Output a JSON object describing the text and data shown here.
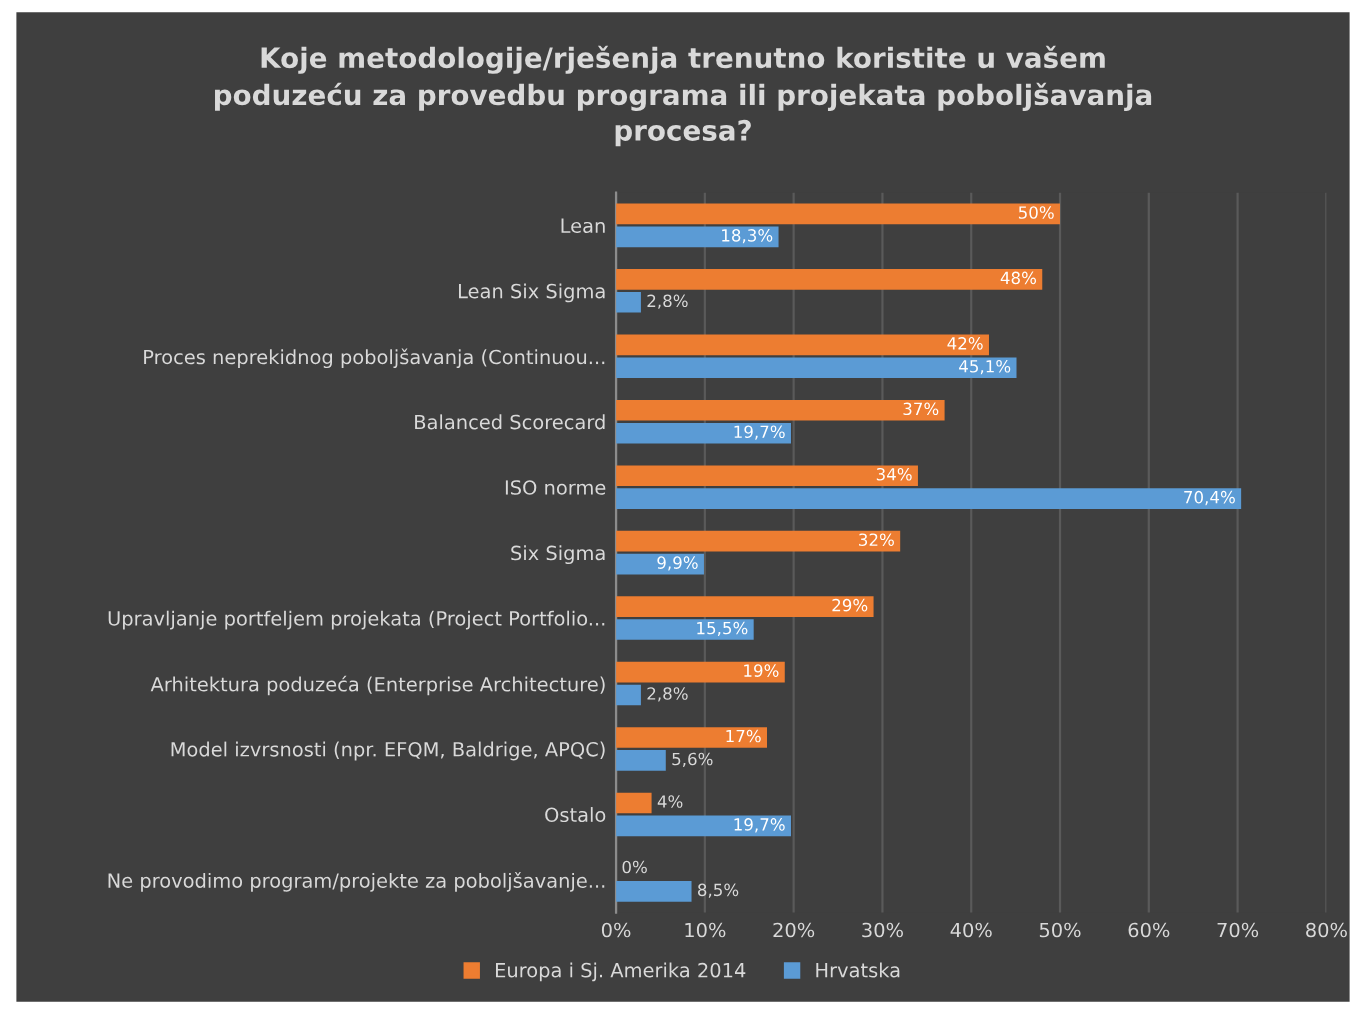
{
  "chart_data": {
    "type": "bar",
    "orientation": "horizontal",
    "title": "Koje metodologije/rješenja trenutno koristite u vašem\npoduzeću za provedbu programa ili projekata poboljšavanja\nprocesa?",
    "categories": [
      "Lean",
      "Lean Six Sigma",
      "Proces neprekidnog poboljšavanja (Continuou...",
      "Balanced Scorecard",
      "ISO norme",
      "Six Sigma",
      "Upravljanje portfeljem projekata (Project Portfolio...",
      "Arhitektura poduzeća (Enterprise Architecture)",
      "Model izvrsnosti (npr. EFQM, Baldrige, APQC)",
      "Ostalo",
      "Ne provodimo program/projekte za poboljšavanje..."
    ],
    "series": [
      {
        "name": "Europa i Sj. Amerika 2014",
        "color": "#ed7d31",
        "values": [
          50,
          48,
          42,
          37,
          34,
          32,
          29,
          19,
          17,
          4,
          0
        ],
        "value_labels": [
          "50%",
          "48%",
          "42%",
          "37%",
          "34%",
          "32%",
          "29%",
          "19%",
          "17%",
          "4%",
          "0%"
        ]
      },
      {
        "name": "Hrvatska",
        "color": "#5b9bd5",
        "values": [
          18.3,
          2.8,
          45.1,
          19.7,
          70.4,
          9.9,
          15.5,
          2.8,
          5.6,
          19.7,
          8.5
        ],
        "value_labels": [
          "18,3%",
          "2,8%",
          "45,1%",
          "19,7%",
          "70,4%",
          "9,9%",
          "15,5%",
          "2,8%",
          "5,6%",
          "19,7%",
          "8,5%"
        ]
      }
    ],
    "xlim": [
      0,
      80
    ],
    "xticks": [
      {
        "value": 0,
        "label": "0%"
      },
      {
        "value": 10,
        "label": "10%"
      },
      {
        "value": 20,
        "label": "20%"
      },
      {
        "value": 30,
        "label": "30%"
      },
      {
        "value": 40,
        "label": "40%"
      },
      {
        "value": 50,
        "label": "50%"
      },
      {
        "value": 60,
        "label": "60%"
      },
      {
        "value": 70,
        "label": "70%"
      },
      {
        "value": 80,
        "label": "80%"
      }
    ],
    "grid": "x",
    "legend": "bottom"
  }
}
